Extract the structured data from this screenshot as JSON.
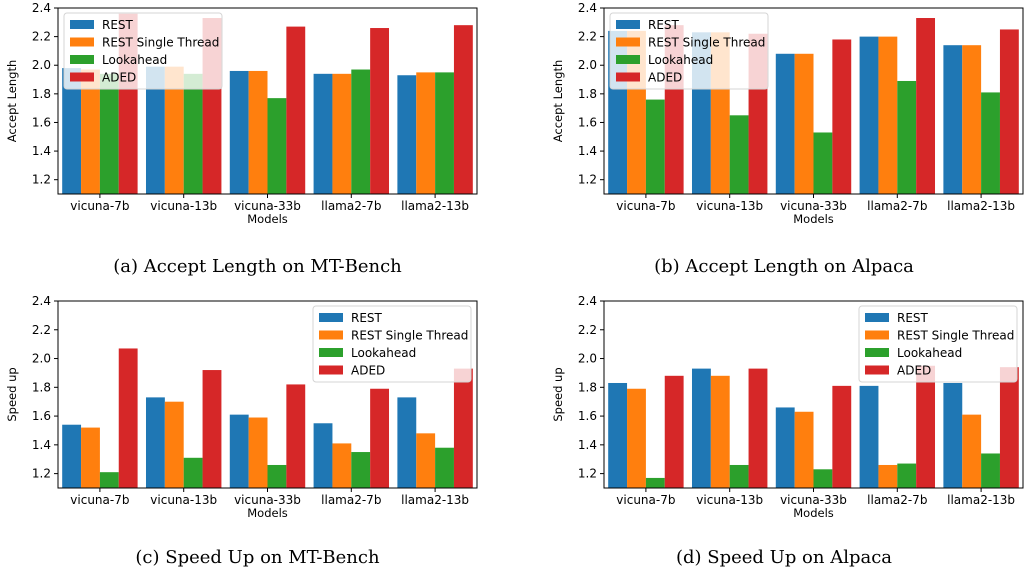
{
  "figure": {
    "captions": [
      "(a) Accept Length on MT-Bench",
      "(b) Accept Length on Alpaca",
      "(c) Speed Up on MT-Bench",
      "(d) Speed Up on Alpaca"
    ]
  },
  "colors": {
    "REST": "#1f77b4",
    "REST Single Thread": "#ff7f0e",
    "Lookahead": "#2ca02c",
    "ADED": "#d62728"
  },
  "chart_data": [
    {
      "type": "bar",
      "title": "",
      "xlabel": "Models",
      "ylabel": "Accept Length",
      "ylim": [
        1.1,
        2.4
      ],
      "yticks": [
        1.2,
        1.4,
        1.6,
        1.8,
        2.0,
        2.2,
        2.4
      ],
      "legend_position": "top-left",
      "grid": false,
      "categories": [
        "vicuna-7b",
        "vicuna-13b",
        "vicuna-33b",
        "llama2-7b",
        "llama2-13b"
      ],
      "series": [
        {
          "name": "REST",
          "values": [
            1.98,
            1.99,
            1.96,
            1.94,
            1.93
          ]
        },
        {
          "name": "REST Single Thread",
          "values": [
            1.97,
            1.99,
            1.96,
            1.94,
            1.95
          ]
        },
        {
          "name": "Lookahead",
          "values": [
            1.94,
            1.94,
            1.77,
            1.97,
            1.95
          ]
        },
        {
          "name": "ADED",
          "values": [
            2.36,
            2.33,
            2.27,
            2.26,
            2.28
          ]
        }
      ]
    },
    {
      "type": "bar",
      "title": "",
      "xlabel": "Models",
      "ylabel": "Accept Length",
      "ylim": [
        1.1,
        2.4
      ],
      "yticks": [
        1.2,
        1.4,
        1.6,
        1.8,
        2.0,
        2.2,
        2.4
      ],
      "legend_position": "top-left",
      "grid": false,
      "categories": [
        "vicuna-7b",
        "vicuna-13b",
        "vicuna-33b",
        "llama2-7b",
        "llama2-13b"
      ],
      "series": [
        {
          "name": "REST",
          "values": [
            2.24,
            2.23,
            2.08,
            2.2,
            2.14
          ]
        },
        {
          "name": "REST Single Thread",
          "values": [
            2.24,
            2.23,
            2.08,
            2.2,
            2.14
          ]
        },
        {
          "name": "Lookahead",
          "values": [
            1.76,
            1.65,
            1.53,
            1.89,
            1.81
          ]
        },
        {
          "name": "ADED",
          "values": [
            2.28,
            2.22,
            2.18,
            2.33,
            2.25
          ]
        }
      ]
    },
    {
      "type": "bar",
      "title": "",
      "xlabel": "Models",
      "ylabel": "Speed up",
      "ylim": [
        1.1,
        2.4
      ],
      "yticks": [
        1.2,
        1.4,
        1.6,
        1.8,
        2.0,
        2.2,
        2.4
      ],
      "legend_position": "top-right",
      "grid": false,
      "categories": [
        "vicuna-7b",
        "vicuna-13b",
        "vicuna-33b",
        "llama2-7b",
        "llama2-13b"
      ],
      "series": [
        {
          "name": "REST",
          "values": [
            1.54,
            1.73,
            1.61,
            1.55,
            1.73
          ]
        },
        {
          "name": "REST Single Thread",
          "values": [
            1.52,
            1.7,
            1.59,
            1.41,
            1.48
          ]
        },
        {
          "name": "Lookahead",
          "values": [
            1.21,
            1.31,
            1.26,
            1.35,
            1.38
          ]
        },
        {
          "name": "ADED",
          "values": [
            2.07,
            1.92,
            1.82,
            1.79,
            1.93
          ]
        }
      ]
    },
    {
      "type": "bar",
      "title": "",
      "xlabel": "Models",
      "ylabel": "Speed up",
      "ylim": [
        1.1,
        2.4
      ],
      "yticks": [
        1.2,
        1.4,
        1.6,
        1.8,
        2.0,
        2.2,
        2.4
      ],
      "legend_position": "top-right",
      "grid": false,
      "categories": [
        "vicuna-7b",
        "vicuna-13b",
        "vicuna-33b",
        "llama2-7b",
        "llama2-13b"
      ],
      "series": [
        {
          "name": "REST",
          "values": [
            1.83,
            1.93,
            1.66,
            1.81,
            1.83
          ]
        },
        {
          "name": "REST Single Thread",
          "values": [
            1.79,
            1.88,
            1.63,
            1.26,
            1.61
          ]
        },
        {
          "name": "Lookahead",
          "values": [
            1.17,
            1.26,
            1.23,
            1.27,
            1.34
          ]
        },
        {
          "name": "ADED",
          "values": [
            1.88,
            1.93,
            1.81,
            1.95,
            1.94
          ]
        }
      ]
    }
  ]
}
